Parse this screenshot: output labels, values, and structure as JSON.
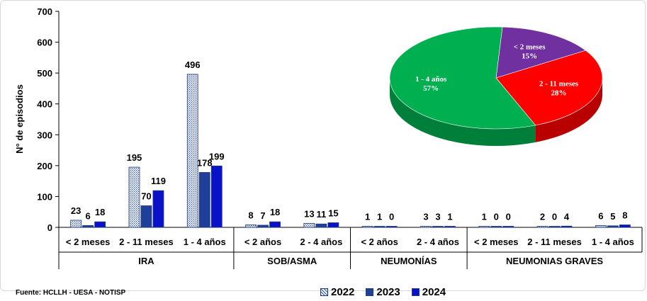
{
  "chart_data": [
    {
      "type": "bar",
      "ylabel": "N° de episodios",
      "ylim": [
        0,
        700
      ],
      "yticks": [
        0,
        100,
        200,
        300,
        400,
        500,
        600,
        700
      ],
      "grid": false,
      "legend_position": "bottom",
      "groups": [
        {
          "label": "IRA",
          "categories": [
            "< 2 meses",
            "2 - 11 meses",
            "1 - 4 años"
          ]
        },
        {
          "label": "SOB/ASMA",
          "categories": [
            "< 2 años",
            "2 - 4 años"
          ]
        },
        {
          "label": "NEUMONÍAS",
          "categories": [
            "< 2 años",
            "2 - 4 años"
          ]
        },
        {
          "label": "NEUMONIAS GRAVES",
          "categories": [
            "< 2 meses",
            "2 - 11 meses",
            "1 - 4 años"
          ]
        }
      ],
      "categories": [
        "< 2 meses",
        "2 - 11 meses",
        "1 - 4 años",
        "< 2 años",
        "2 - 4 años",
        "< 2 años",
        "2 - 4 años",
        "< 2 meses",
        "2 - 11 meses",
        "1 - 4 años"
      ],
      "series": [
        {
          "name": "2022",
          "color": "#ffffff",
          "pattern": "dotted",
          "values": [
            23,
            195,
            496,
            8,
            13,
            1,
            3,
            1,
            2,
            6
          ]
        },
        {
          "name": "2023",
          "color": "#1f3f9a",
          "values": [
            6,
            70,
            178,
            7,
            11,
            1,
            3,
            0,
            0,
            5
          ]
        },
        {
          "name": "2024",
          "color": "#0a12c8",
          "values": [
            18,
            119,
            199,
            18,
            15,
            0,
            1,
            0,
            4,
            8
          ]
        }
      ]
    },
    {
      "type": "pie",
      "slices": [
        {
          "label": "< 2 meses",
          "value": 15,
          "display": "15%",
          "color": "#7030a0"
        },
        {
          "label": "2 - 11 meses",
          "value": 28,
          "display": "28%",
          "color": "#ff0000"
        },
        {
          "label": "1 - 4 años",
          "value": 57,
          "display": "57%",
          "color": "#00b050"
        }
      ]
    }
  ],
  "legend": {
    "items": [
      "2022",
      "2023",
      "2024"
    ]
  },
  "source": "Fuente:  HCLLH - UESA - NOTISP"
}
